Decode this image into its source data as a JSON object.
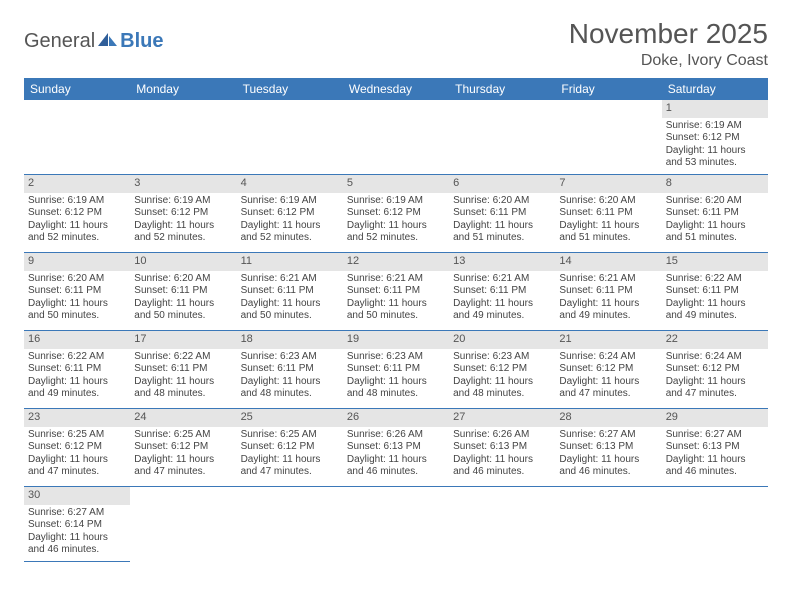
{
  "logo": {
    "text1": "General",
    "text2": "Blue"
  },
  "title": "November 2025",
  "location": "Doke, Ivory Coast",
  "colors": {
    "header_bg": "#3b78b8",
    "header_text": "#ffffff",
    "daynum_bg": "#e5e5e5",
    "border": "#3b78b8",
    "text": "#444444",
    "title_text": "#555555"
  },
  "weekdays": [
    "Sunday",
    "Monday",
    "Tuesday",
    "Wednesday",
    "Thursday",
    "Friday",
    "Saturday"
  ],
  "weeks": [
    [
      null,
      null,
      null,
      null,
      null,
      null,
      {
        "n": "1",
        "sr": "6:19 AM",
        "ss": "6:12 PM",
        "dl": "11 hours and 53 minutes."
      }
    ],
    [
      {
        "n": "2",
        "sr": "6:19 AM",
        "ss": "6:12 PM",
        "dl": "11 hours and 52 minutes."
      },
      {
        "n": "3",
        "sr": "6:19 AM",
        "ss": "6:12 PM",
        "dl": "11 hours and 52 minutes."
      },
      {
        "n": "4",
        "sr": "6:19 AM",
        "ss": "6:12 PM",
        "dl": "11 hours and 52 minutes."
      },
      {
        "n": "5",
        "sr": "6:19 AM",
        "ss": "6:12 PM",
        "dl": "11 hours and 52 minutes."
      },
      {
        "n": "6",
        "sr": "6:20 AM",
        "ss": "6:11 PM",
        "dl": "11 hours and 51 minutes."
      },
      {
        "n": "7",
        "sr": "6:20 AM",
        "ss": "6:11 PM",
        "dl": "11 hours and 51 minutes."
      },
      {
        "n": "8",
        "sr": "6:20 AM",
        "ss": "6:11 PM",
        "dl": "11 hours and 51 minutes."
      }
    ],
    [
      {
        "n": "9",
        "sr": "6:20 AM",
        "ss": "6:11 PM",
        "dl": "11 hours and 50 minutes."
      },
      {
        "n": "10",
        "sr": "6:20 AM",
        "ss": "6:11 PM",
        "dl": "11 hours and 50 minutes."
      },
      {
        "n": "11",
        "sr": "6:21 AM",
        "ss": "6:11 PM",
        "dl": "11 hours and 50 minutes."
      },
      {
        "n": "12",
        "sr": "6:21 AM",
        "ss": "6:11 PM",
        "dl": "11 hours and 50 minutes."
      },
      {
        "n": "13",
        "sr": "6:21 AM",
        "ss": "6:11 PM",
        "dl": "11 hours and 49 minutes."
      },
      {
        "n": "14",
        "sr": "6:21 AM",
        "ss": "6:11 PM",
        "dl": "11 hours and 49 minutes."
      },
      {
        "n": "15",
        "sr": "6:22 AM",
        "ss": "6:11 PM",
        "dl": "11 hours and 49 minutes."
      }
    ],
    [
      {
        "n": "16",
        "sr": "6:22 AM",
        "ss": "6:11 PM",
        "dl": "11 hours and 49 minutes."
      },
      {
        "n": "17",
        "sr": "6:22 AM",
        "ss": "6:11 PM",
        "dl": "11 hours and 48 minutes."
      },
      {
        "n": "18",
        "sr": "6:23 AM",
        "ss": "6:11 PM",
        "dl": "11 hours and 48 minutes."
      },
      {
        "n": "19",
        "sr": "6:23 AM",
        "ss": "6:11 PM",
        "dl": "11 hours and 48 minutes."
      },
      {
        "n": "20",
        "sr": "6:23 AM",
        "ss": "6:12 PM",
        "dl": "11 hours and 48 minutes."
      },
      {
        "n": "21",
        "sr": "6:24 AM",
        "ss": "6:12 PM",
        "dl": "11 hours and 47 minutes."
      },
      {
        "n": "22",
        "sr": "6:24 AM",
        "ss": "6:12 PM",
        "dl": "11 hours and 47 minutes."
      }
    ],
    [
      {
        "n": "23",
        "sr": "6:25 AM",
        "ss": "6:12 PM",
        "dl": "11 hours and 47 minutes."
      },
      {
        "n": "24",
        "sr": "6:25 AM",
        "ss": "6:12 PM",
        "dl": "11 hours and 47 minutes."
      },
      {
        "n": "25",
        "sr": "6:25 AM",
        "ss": "6:12 PM",
        "dl": "11 hours and 47 minutes."
      },
      {
        "n": "26",
        "sr": "6:26 AM",
        "ss": "6:13 PM",
        "dl": "11 hours and 46 minutes."
      },
      {
        "n": "27",
        "sr": "6:26 AM",
        "ss": "6:13 PM",
        "dl": "11 hours and 46 minutes."
      },
      {
        "n": "28",
        "sr": "6:27 AM",
        "ss": "6:13 PM",
        "dl": "11 hours and 46 minutes."
      },
      {
        "n": "29",
        "sr": "6:27 AM",
        "ss": "6:13 PM",
        "dl": "11 hours and 46 minutes."
      }
    ],
    [
      {
        "n": "30",
        "sr": "6:27 AM",
        "ss": "6:14 PM",
        "dl": "11 hours and 46 minutes."
      },
      null,
      null,
      null,
      null,
      null,
      null
    ]
  ],
  "labels": {
    "sunrise": "Sunrise:",
    "sunset": "Sunset:",
    "daylight": "Daylight:"
  }
}
